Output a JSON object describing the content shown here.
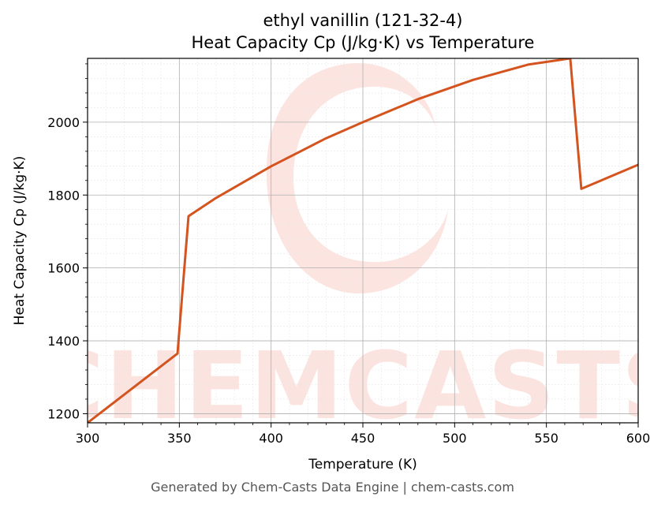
{
  "chart_data": {
    "type": "line",
    "title_line1": "ethyl vanillin (121-32-4)",
    "title_line2": "Heat Capacity Cp (J/kg·K) vs Temperature",
    "xlabel": "Temperature (K)",
    "ylabel": "Heat Capacity Cp (J/kg·K)",
    "xlim": [
      300,
      600
    ],
    "ylim": [
      1175,
      2175
    ],
    "xticks": [
      300,
      350,
      400,
      450,
      500,
      550,
      600
    ],
    "yticks": [
      1200,
      1400,
      1600,
      1800,
      2000
    ],
    "grid": true,
    "line_color": "#d4541f",
    "series": [
      {
        "x": [
          300,
          349,
          355,
          370,
          400,
          430,
          450,
          480,
          510,
          540,
          563,
          569,
          600
        ],
        "y": [
          1175,
          1365,
          1742,
          1792,
          1879,
          1956,
          2000,
          2063,
          2116,
          2158,
          2175,
          1817,
          1883
        ]
      }
    ],
    "watermark": "CHEMCASTS",
    "watermark_color": "#f7c0b6"
  },
  "footer": "Generated by Chem-Casts Data Engine | chem-casts.com"
}
